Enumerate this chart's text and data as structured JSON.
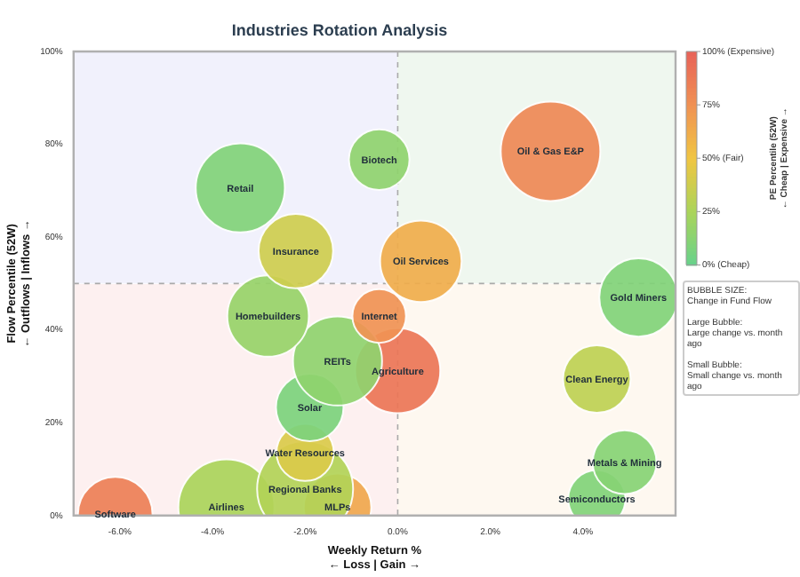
{
  "chart_data": {
    "type": "bubble",
    "title": "Industries Rotation Analysis",
    "xlabel": "Weekly Return %\n← Loss | Gain →",
    "ylabel": "Flow Percentile (52W)\n← Outflows | Inflows →",
    "clabel": "PE Percentile (52W)\n← Cheap | Expensive →",
    "xlim": [
      -7,
      6
    ],
    "xticks": [
      {
        "value": -6,
        "label": "-6.0%"
      },
      {
        "value": -4,
        "label": "-4.0%"
      },
      {
        "value": -2,
        "label": "-2.0%"
      },
      {
        "value": 0,
        "label": "0.0%"
      },
      {
        "value": 2,
        "label": "2.0%"
      },
      {
        "value": 4,
        "label": "4.0%"
      }
    ],
    "ylim": [
      0,
      100
    ],
    "yticks": [
      {
        "value": 0,
        "label": "0%"
      },
      {
        "value": 20,
        "label": "20%"
      },
      {
        "value": 40,
        "label": "40%"
      },
      {
        "value": 60,
        "label": "60%"
      },
      {
        "value": 80,
        "label": "80%"
      },
      {
        "value": 100,
        "label": "100%"
      }
    ],
    "clim": [
      0,
      100
    ],
    "cticks": [
      {
        "value": 0,
        "label": "0% (Cheap)"
      },
      {
        "value": 25,
        "label": "25%"
      },
      {
        "value": 50,
        "label": "50% (Fair)"
      },
      {
        "value": 75,
        "label": "75%"
      },
      {
        "value": 100,
        "label": "100% (Expensive)"
      }
    ],
    "ref_lines": [
      {
        "axis": "x",
        "value": 0,
        "line_style": "dashed"
      },
      {
        "axis": "y",
        "value": 50,
        "line_style": "dashed"
      }
    ],
    "annotations": [
      "BUBBLE SIZE:\nChange in Fund Flow\n\nLarge Bubble:\nLarge change vs. month ago\n\nSmall Bubble:\nSmall change vs. month ago"
    ],
    "legend": false,
    "series": [
      {
        "name": "Retail",
        "x": [
          -3.4
        ],
        "values": [
          70.6
        ],
        "sizes": [
          0.8
        ],
        "cvalues": [
          10
        ]
      },
      {
        "name": "Biotech",
        "x": [
          -0.4
        ],
        "values": [
          76.7
        ],
        "sizes": [
          0.37
        ],
        "cvalues": [
          15
        ]
      },
      {
        "name": "Insurance",
        "x": [
          -2.2
        ],
        "values": [
          57
        ],
        "sizes": [
          0.56
        ],
        "cvalues": [
          38
        ]
      },
      {
        "name": "Oil & Gas E&P",
        "x": [
          3.3
        ],
        "values": [
          78.5
        ],
        "sizes": [
          1
        ],
        "cvalues": [
          80
        ]
      },
      {
        "name": "Oil Services",
        "x": [
          0.5
        ],
        "values": [
          54.8
        ],
        "sizes": [
          0.67
        ],
        "cvalues": [
          62
        ]
      },
      {
        "name": "Gold Miners",
        "x": [
          5.2
        ],
        "values": [
          47
        ],
        "sizes": [
          0.62
        ],
        "cvalues": [
          10
        ]
      },
      {
        "name": "Homebuilders",
        "x": [
          -2.8
        ],
        "values": [
          43
        ],
        "sizes": [
          0.67
        ],
        "cvalues": [
          18
        ]
      },
      {
        "name": "Internet",
        "x": [
          -0.4
        ],
        "values": [
          43
        ],
        "sizes": [
          0.29
        ],
        "cvalues": [
          75
        ]
      },
      {
        "name": "REITs",
        "x": [
          -1.3
        ],
        "values": [
          33.3
        ],
        "sizes": [
          0.8
        ],
        "cvalues": [
          15
        ]
      },
      {
        "name": "Agriculture",
        "x": [
          0
        ],
        "values": [
          31.2
        ],
        "sizes": [
          0.73
        ],
        "cvalues": [
          90
        ]
      },
      {
        "name": "Clean Energy",
        "x": [
          4.3
        ],
        "values": [
          29.4
        ],
        "sizes": [
          0.46
        ],
        "cvalues": [
          32
        ]
      },
      {
        "name": "Solar",
        "x": [
          -1.9
        ],
        "values": [
          23.3
        ],
        "sizes": [
          0.46
        ],
        "cvalues": [
          8
        ]
      },
      {
        "name": "Water Resources",
        "x": [
          -2
        ],
        "values": [
          13.6
        ],
        "sizes": [
          0.33
        ],
        "cvalues": [
          42
        ]
      },
      {
        "name": "Regional Banks",
        "x": [
          -2
        ],
        "values": [
          5.7
        ],
        "sizes": [
          0.93
        ],
        "cvalues": [
          28
        ]
      },
      {
        "name": "Metals & Mining",
        "x": [
          4.9
        ],
        "values": [
          11.5
        ],
        "sizes": [
          0.41
        ],
        "cvalues": [
          12
        ]
      },
      {
        "name": "Airlines",
        "x": [
          -3.7
        ],
        "values": [
          1.8
        ],
        "sizes": [
          0.93
        ],
        "cvalues": [
          25
        ]
      },
      {
        "name": "MLPs",
        "x": [
          -1.3
        ],
        "values": [
          1.8
        ],
        "sizes": [
          0.46
        ],
        "cvalues": [
          65
        ]
      },
      {
        "name": "Semiconductors",
        "x": [
          4.3
        ],
        "values": [
          3.6
        ],
        "sizes": [
          0.33
        ],
        "cvalues": [
          10
        ]
      },
      {
        "name": "Software",
        "x": [
          -6.1
        ],
        "values": [
          0.3
        ],
        "sizes": [
          0.56
        ],
        "cvalues": [
          85
        ]
      }
    ]
  }
}
